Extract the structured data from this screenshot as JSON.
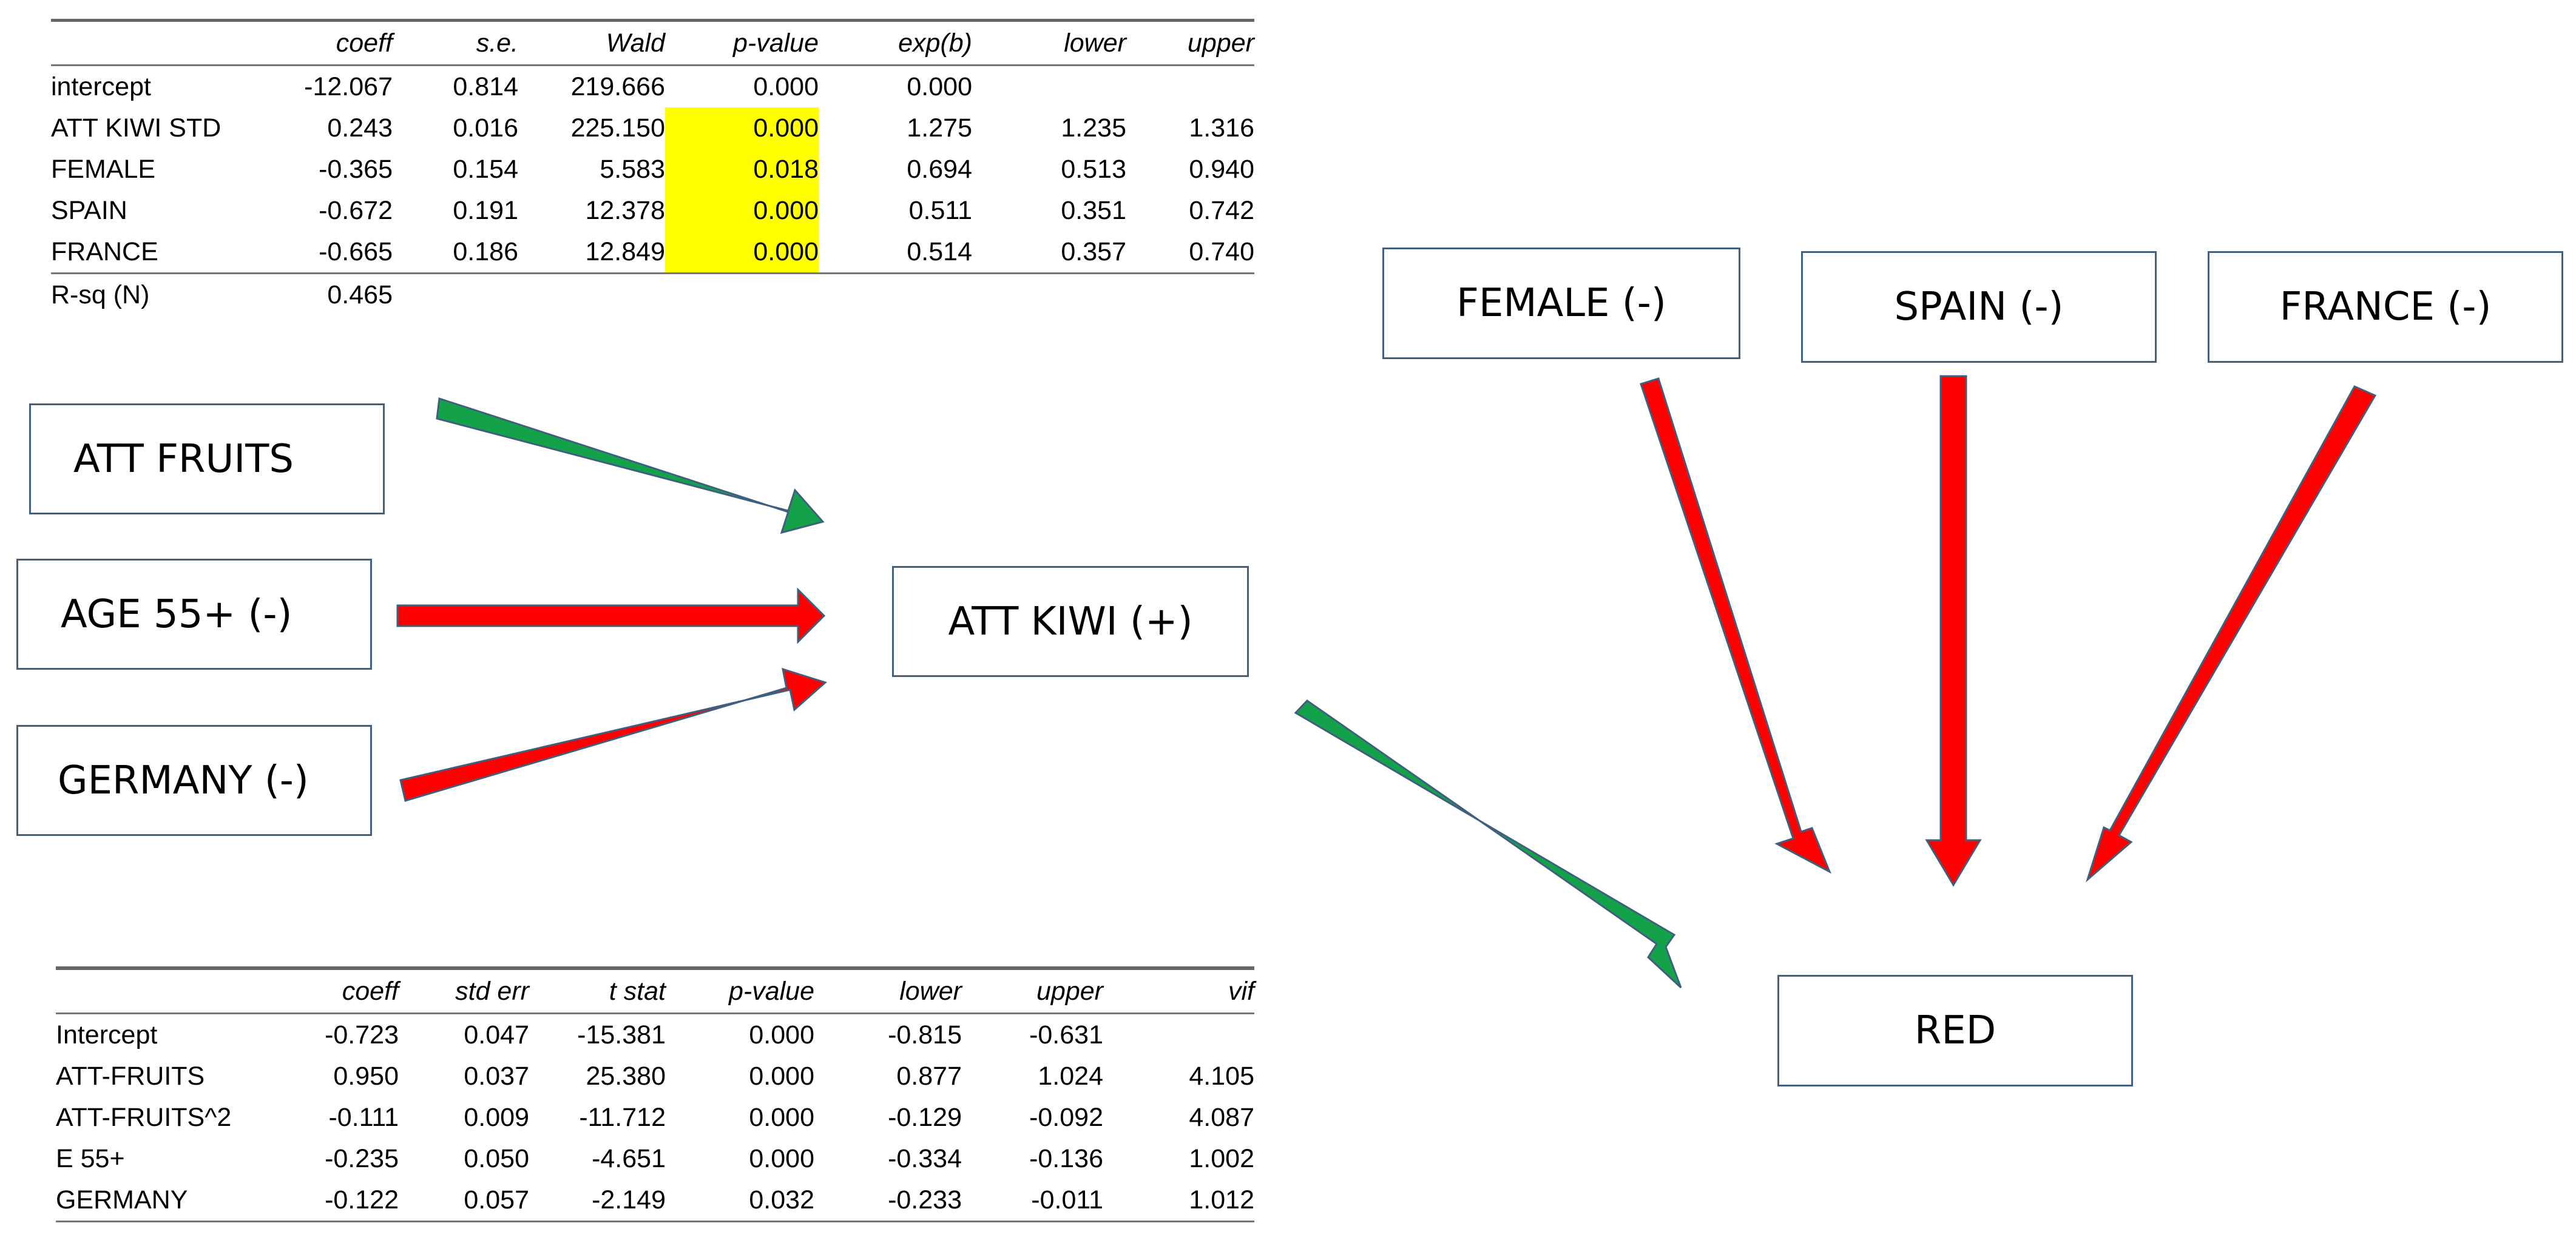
{
  "logit_table": {
    "headers": [
      "",
      "coeff",
      "s.e.",
      "Wald",
      "p-value",
      "exp(b)",
      "lower",
      "upper"
    ],
    "rows": [
      [
        "intercept",
        "-12.067",
        "0.814",
        "219.666",
        "0.000",
        "0.000",
        "",
        ""
      ],
      [
        "ATT KIWI STD",
        "0.243",
        "0.016",
        "225.150",
        "0.000",
        "1.275",
        "1.235",
        "1.316"
      ],
      [
        "FEMALE",
        "-0.365",
        "0.154",
        "5.583",
        "0.018",
        "0.694",
        "0.513",
        "0.940"
      ],
      [
        "SPAIN",
        "-0.672",
        "0.191",
        "12.378",
        "0.000",
        "0.511",
        "0.351",
        "0.742"
      ],
      [
        "FRANCE",
        "-0.665",
        "0.186",
        "12.849",
        "0.000",
        "0.514",
        "0.357",
        "0.740"
      ]
    ],
    "rsq_label": "R-sq (N)",
    "rsq_value": "0.465",
    "highlight_color": "#ffff00"
  },
  "ols_table": {
    "headers": [
      "",
      "coeff",
      "std err",
      "t stat",
      "p-value",
      "lower",
      "upper",
      "vif"
    ],
    "rows": [
      [
        "Intercept",
        "-0.723",
        "0.047",
        "-15.381",
        "0.000",
        "-0.815",
        "-0.631",
        ""
      ],
      [
        "ATT-FRUITS",
        "0.950",
        "0.037",
        "25.380",
        "0.000",
        "0.877",
        "1.024",
        "4.105"
      ],
      [
        "ATT-FRUITS^2",
        "-0.111",
        "0.009",
        "-11.712",
        "0.000",
        "-0.129",
        "-0.092",
        "4.087"
      ],
      [
        "E 55+",
        "-0.235",
        "0.050",
        "-4.651",
        "0.000",
        "-0.334",
        "-0.136",
        "1.002"
      ],
      [
        "GERMANY",
        "-0.122",
        "0.057",
        "-2.149",
        "0.032",
        "-0.233",
        "-0.011",
        "1.012"
      ]
    ]
  },
  "diagram": {
    "nodes": {
      "att_fruits": "ATT FRUITS",
      "age55": "AGE 55+ (-)",
      "germany": "GERMANY (-)",
      "att_kiwi": "ATT KIWI (+)",
      "female": "FEMALE (-)",
      "spain": "SPAIN (-)",
      "france": "FRANCE (-)",
      "red": "RED"
    },
    "edges": [
      {
        "from": "att_fruits",
        "to": "att_kiwi",
        "effect": "positive"
      },
      {
        "from": "age55",
        "to": "att_kiwi",
        "effect": "negative"
      },
      {
        "from": "germany",
        "to": "att_kiwi",
        "effect": "negative"
      },
      {
        "from": "att_kiwi",
        "to": "red",
        "effect": "positive"
      },
      {
        "from": "female",
        "to": "red",
        "effect": "negative"
      },
      {
        "from": "spain",
        "to": "red",
        "effect": "negative"
      },
      {
        "from": "france",
        "to": "red",
        "effect": "negative"
      }
    ],
    "colors": {
      "positive": "#13a24a",
      "negative": "#ff0000",
      "arrow_outline": "#3f5f7f",
      "box_border": "#43607e"
    }
  }
}
